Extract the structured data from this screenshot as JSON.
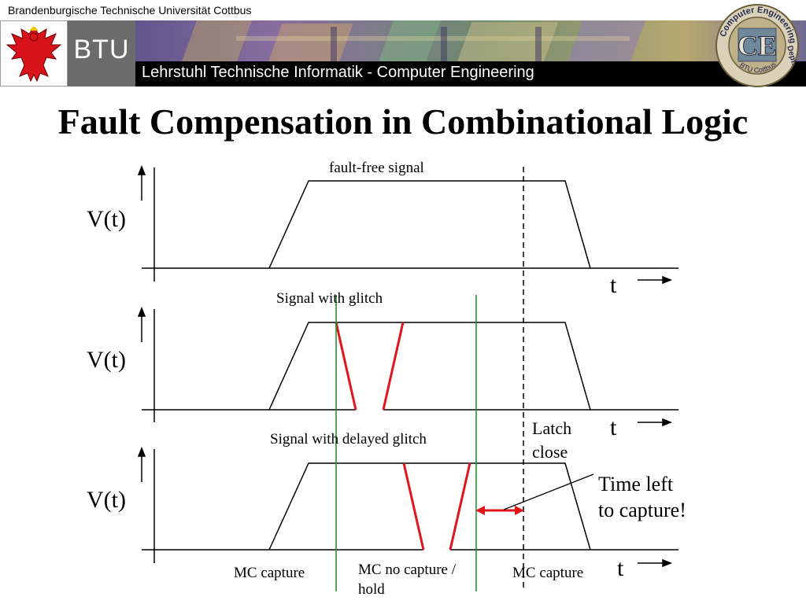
{
  "header": {
    "university": "Brandenburgische Technische Universität Cottbus",
    "btu_logo": "BTU",
    "chair": "Lehrstuhl Technische Informatik - Computer Engineering",
    "ce_logo_letters": "CE",
    "ce_ring_top": "Computer Engineering",
    "ce_ring_side": "Dept.",
    "ce_ring_bottom": "BTU Cottbus",
    "eagle_icon": "brandenburg-eagle-icon"
  },
  "title": "Fault Compensation in Combinational Logic",
  "plots": [
    {
      "ylabel": "V(t)",
      "xlabel": "t",
      "caption": "fault-free signal"
    },
    {
      "ylabel": "V(t)",
      "xlabel": "t",
      "caption": "Signal with glitch"
    },
    {
      "ylabel": "V(t)",
      "xlabel": "t",
      "caption": "Signal with delayed glitch"
    }
  ],
  "annotations": {
    "latch_close": [
      "Latch",
      "close"
    ],
    "time_left": [
      "Time left",
      "to capture!"
    ],
    "mc_capture_left": "MC capture",
    "mc_no_capture": [
      "MC no capture /",
      "hold"
    ],
    "mc_capture_right": "MC capture"
  },
  "colors": {
    "glitch": "#e0161b",
    "capture_line": "#1a8a2a",
    "banner": "#6e5a86",
    "btu_box": "#6b6b6b"
  }
}
